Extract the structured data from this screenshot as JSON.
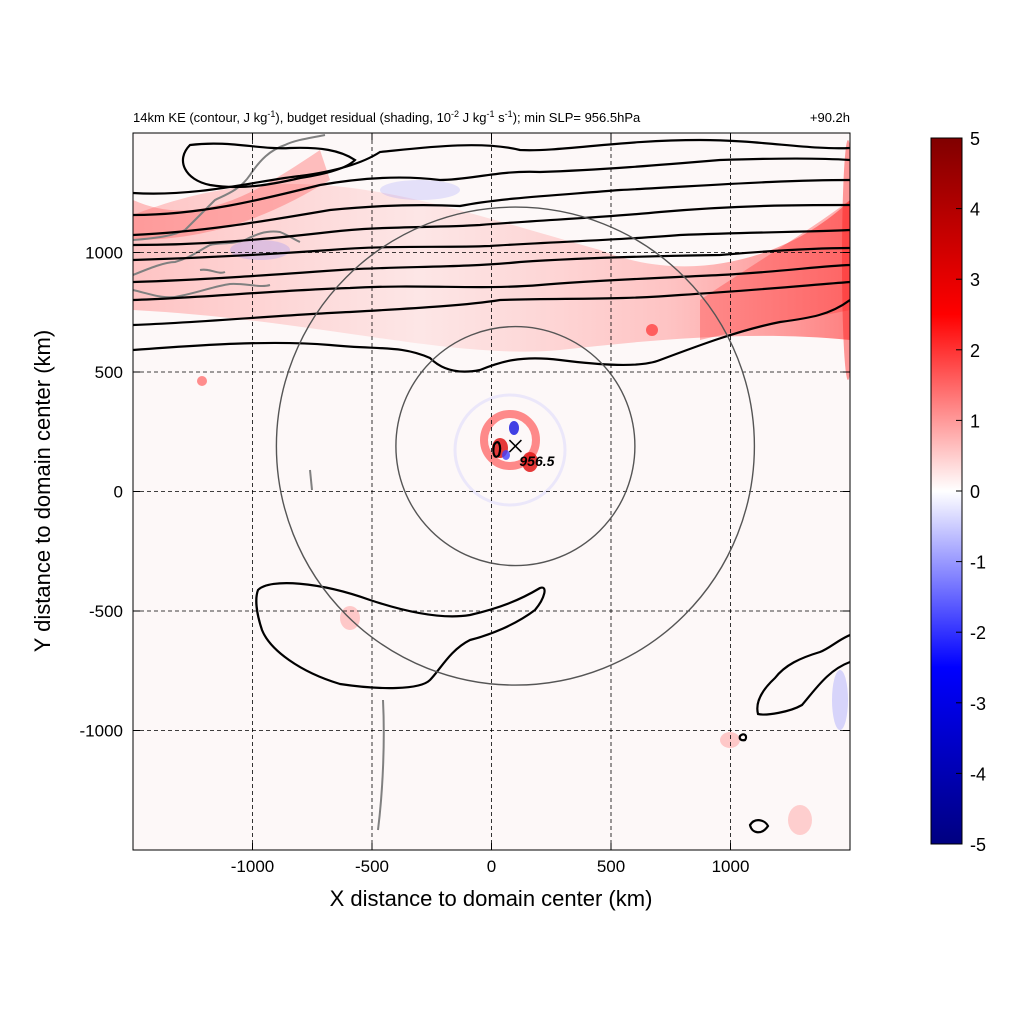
{
  "chart_data": {
    "type": "heatmap",
    "title_parts": {
      "a": "14km KE (contour, J kg",
      "a_sup": "-1",
      "b": "), budget residual (shading, 10",
      "b_sup": "-2",
      "c": " J kg",
      "c_sup": "-1",
      "d": " s",
      "d_sup": "-1",
      "e": "); min SLP= 956.5hPa"
    },
    "time_label": "+90.2h",
    "xlabel": "X distance to domain center (km)",
    "ylabel": "Y distance to domain center (km)",
    "xlim": [
      -1500,
      1500
    ],
    "ylim": [
      -1500,
      1500
    ],
    "xticks": [
      -1000,
      -500,
      0,
      500,
      1000
    ],
    "yticks": [
      -1000,
      -500,
      0,
      500,
      1000
    ],
    "xtick_labels": [
      "-1000",
      "-500",
      "0",
      "500",
      "1000"
    ],
    "ytick_labels": [
      "-1000",
      "-500",
      "0",
      "500",
      "1000"
    ],
    "grid": true,
    "colorbar": {
      "range": [
        -5,
        5
      ],
      "ticks": [
        5,
        4,
        3,
        2,
        1,
        0,
        -1,
        -2,
        -3,
        -4,
        -5
      ],
      "tick_labels": [
        "5",
        "4",
        "3",
        "2",
        "1",
        "0",
        "-1",
        "-2",
        "-3",
        "-4",
        "-5"
      ],
      "colors": [
        "#000080",
        "#0000ff",
        "#ffffff",
        "#ff0000",
        "#800000"
      ]
    },
    "storm_center": {
      "x": 100,
      "y": 190,
      "label": "956.5"
    },
    "range_rings_km": [
      500,
      1000
    ],
    "colors": {
      "contour": "#000000",
      "coastline": "#808080",
      "rings": "#555555",
      "grid": "#000000"
    }
  }
}
